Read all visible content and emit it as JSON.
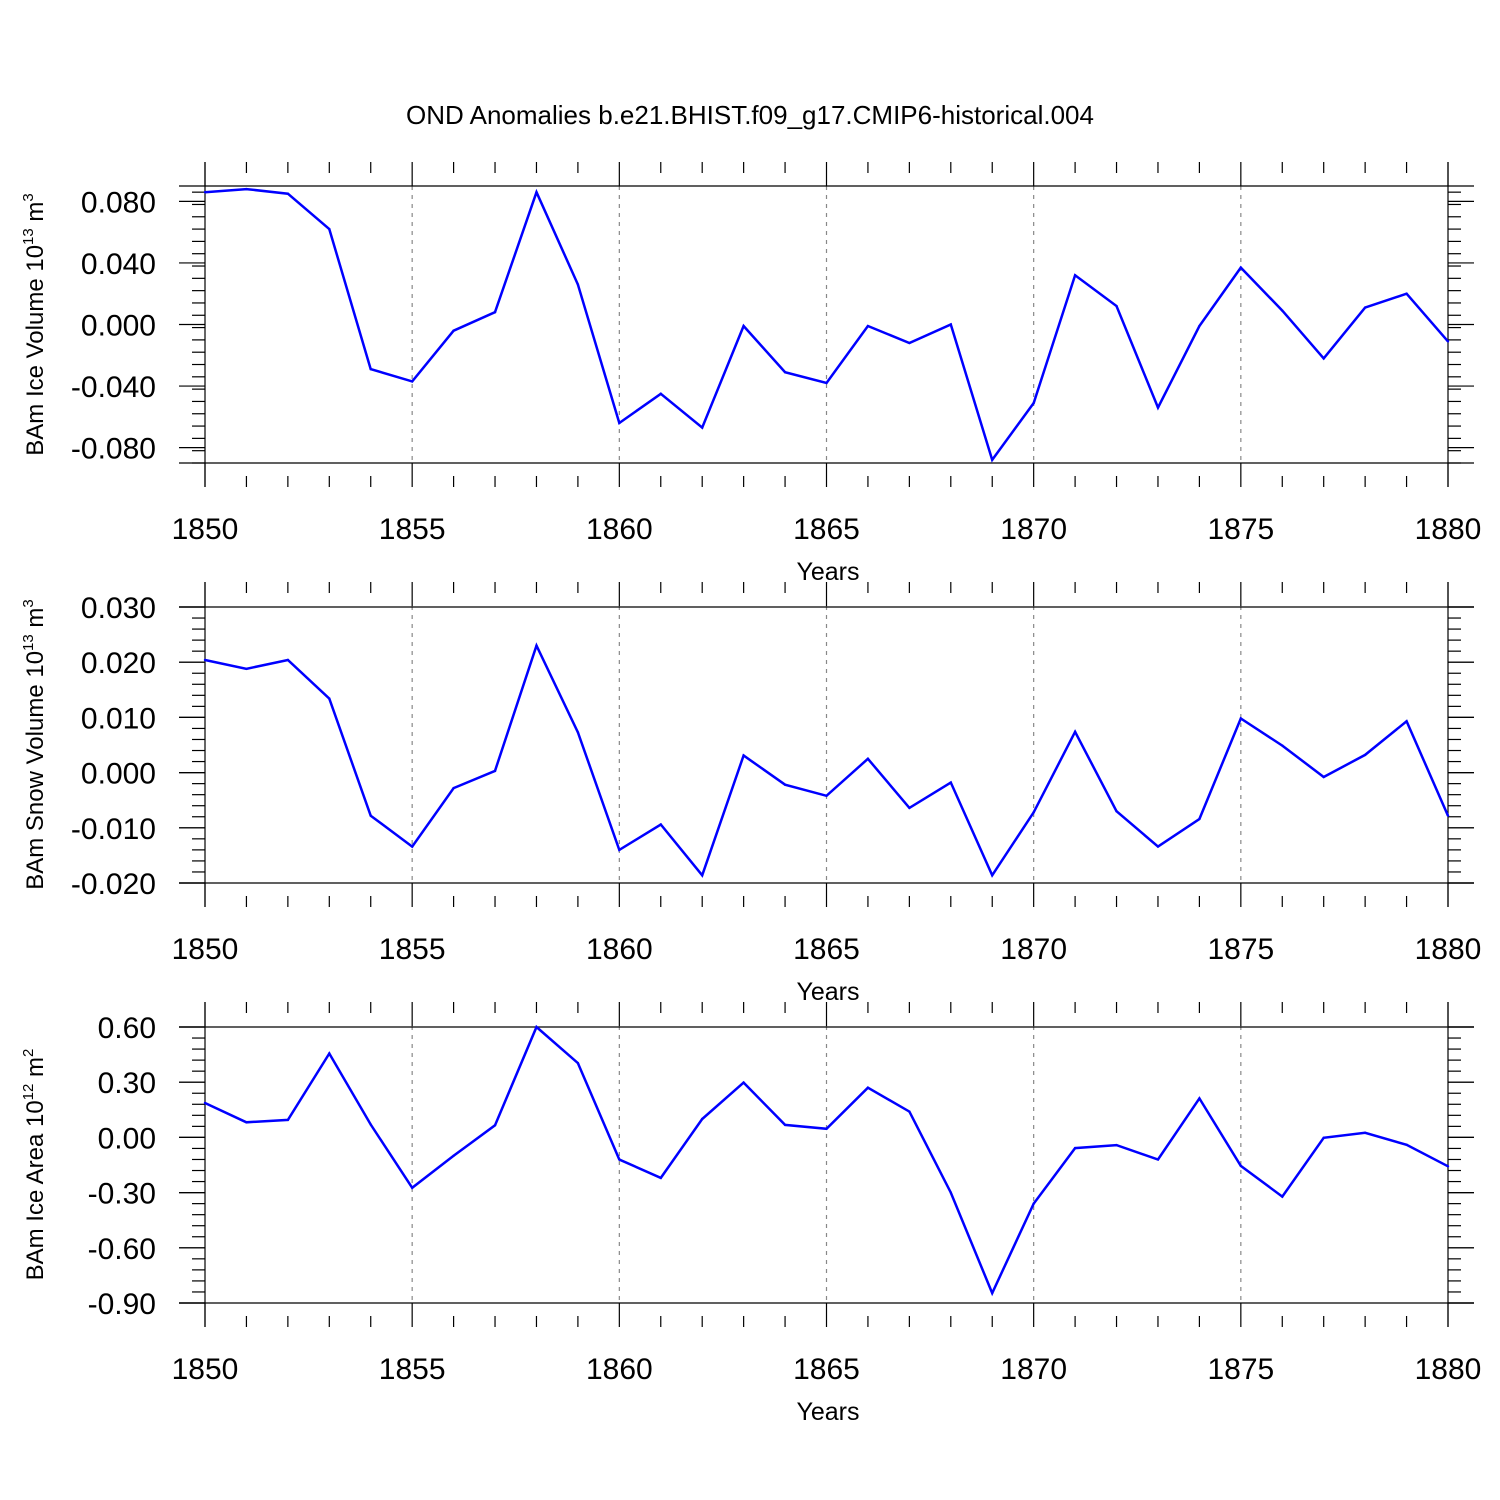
{
  "title": "OND Anomalies b.e21.BHIST.f09_g17.CMIP6-historical.004",
  "colors": {
    "line": "#0000ff",
    "axis": "#000000",
    "grid": "#888888"
  },
  "chart_data": [
    {
      "type": "line",
      "ylabel_main": "BAm Ice Volume 10",
      "ylabel_exp": "13",
      "ylabel_unit": " m",
      "ylabel_unit_exp": "3",
      "xlabel": "Years",
      "xlim": [
        1850,
        1880
      ],
      "ylim": [
        -0.09,
        0.09
      ],
      "yticks": [
        -0.08,
        -0.04,
        0.0,
        0.04,
        0.08
      ],
      "ytick_labels": [
        "-0.080",
        "-0.040",
        "0.000",
        "0.040",
        "0.080"
      ],
      "xticks": [
        1850,
        1855,
        1860,
        1865,
        1870,
        1875,
        1880
      ],
      "xtick_labels": [
        "1850",
        "1855",
        "1860",
        "1865",
        "1870",
        "1875",
        "1880"
      ],
      "x": [
        1850,
        1851,
        1852,
        1853,
        1854,
        1855,
        1856,
        1857,
        1858,
        1859,
        1860,
        1861,
        1862,
        1863,
        1864,
        1865,
        1866,
        1867,
        1868,
        1869,
        1870,
        1871,
        1872,
        1873,
        1874,
        1875,
        1876,
        1877,
        1878,
        1879,
        1880
      ],
      "values": [
        0.086,
        0.088,
        0.085,
        0.062,
        -0.029,
        -0.037,
        -0.004,
        0.008,
        0.086,
        0.026,
        -0.064,
        -0.045,
        -0.067,
        -0.001,
        -0.031,
        -0.038,
        -0.001,
        -0.012,
        0.0,
        -0.088,
        -0.051,
        0.032,
        0.012,
        -0.054,
        -0.001,
        0.037,
        0.009,
        -0.022,
        0.011,
        0.02,
        -0.011
      ]
    },
    {
      "type": "line",
      "ylabel_main": "BAm Snow Volume 10",
      "ylabel_exp": "13",
      "ylabel_unit": " m",
      "ylabel_unit_exp": "3",
      "xlabel": "Years",
      "xlim": [
        1850,
        1880
      ],
      "ylim": [
        -0.02,
        0.03
      ],
      "yticks": [
        -0.02,
        -0.01,
        0.0,
        0.01,
        0.02,
        0.03
      ],
      "ytick_labels": [
        "-0.020",
        "-0.010",
        "0.000",
        "0.010",
        "0.020",
        "0.030"
      ],
      "xticks": [
        1850,
        1855,
        1860,
        1865,
        1870,
        1875,
        1880
      ],
      "xtick_labels": [
        "1850",
        "1855",
        "1860",
        "1865",
        "1870",
        "1875",
        "1880"
      ],
      "x": [
        1850,
        1851,
        1852,
        1853,
        1854,
        1855,
        1856,
        1857,
        1858,
        1859,
        1860,
        1861,
        1862,
        1863,
        1864,
        1865,
        1866,
        1867,
        1868,
        1869,
        1870,
        1871,
        1872,
        1873,
        1874,
        1875,
        1876,
        1877,
        1878,
        1879,
        1880
      ],
      "values": [
        0.0204,
        0.0188,
        0.0204,
        0.0134,
        -0.0078,
        -0.0134,
        -0.0028,
        0.0003,
        0.023,
        0.0073,
        -0.014,
        -0.0094,
        -0.0186,
        0.0031,
        -0.0022,
        -0.0042,
        0.0025,
        -0.0064,
        -0.0018,
        -0.0186,
        -0.0072,
        0.0074,
        -0.007,
        -0.0134,
        -0.0084,
        0.0098,
        0.0049,
        -0.0008,
        0.0032,
        0.0093,
        -0.0078
      ]
    },
    {
      "type": "line",
      "ylabel_main": "BAm Ice Area 10",
      "ylabel_exp": "12",
      "ylabel_unit": " m",
      "ylabel_unit_exp": "2",
      "xlabel": "Years",
      "xlim": [
        1850,
        1880
      ],
      "ylim": [
        -0.9,
        0.6
      ],
      "yticks": [
        -0.9,
        -0.6,
        -0.3,
        0.0,
        0.3,
        0.6
      ],
      "ytick_labels": [
        "-0.90",
        "-0.60",
        "-0.30",
        "0.00",
        "0.30",
        "0.60"
      ],
      "xticks": [
        1850,
        1855,
        1860,
        1865,
        1870,
        1875,
        1880
      ],
      "xtick_labels": [
        "1850",
        "1855",
        "1860",
        "1865",
        "1870",
        "1875",
        "1880"
      ],
      "x": [
        1850,
        1851,
        1852,
        1853,
        1854,
        1855,
        1856,
        1857,
        1858,
        1859,
        1860,
        1861,
        1862,
        1863,
        1864,
        1865,
        1866,
        1867,
        1868,
        1869,
        1870,
        1871,
        1872,
        1873,
        1874,
        1875,
        1876,
        1877,
        1878,
        1879,
        1880
      ],
      "values": [
        0.187,
        0.082,
        0.095,
        0.456,
        0.07,
        -0.274,
        -0.1,
        0.066,
        0.6,
        0.404,
        -0.12,
        -0.22,
        0.1,
        0.298,
        0.068,
        0.047,
        0.27,
        0.14,
        -0.3,
        -0.846,
        -0.36,
        -0.058,
        -0.042,
        -0.12,
        0.212,
        -0.155,
        -0.322,
        -0.002,
        0.025,
        -0.04,
        -0.157
      ]
    }
  ]
}
